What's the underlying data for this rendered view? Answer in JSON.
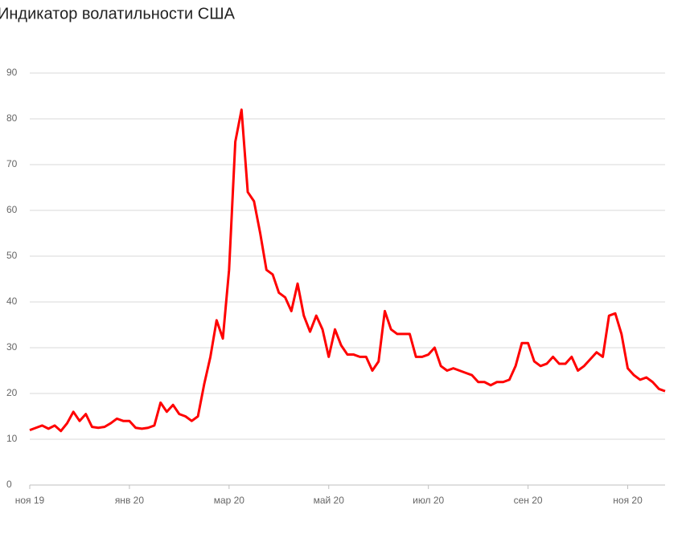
{
  "chart_data": {
    "type": "line",
    "title": "Индикатор волатильности США",
    "categories": [
      "ноя 19",
      null,
      null,
      null,
      null,
      null,
      null,
      null,
      null,
      null,
      null,
      null,
      null,
      null,
      null,
      null,
      "янв 20",
      null,
      null,
      null,
      null,
      null,
      null,
      null,
      null,
      null,
      null,
      null,
      null,
      null,
      null,
      null,
      "мар 20",
      null,
      null,
      null,
      null,
      null,
      null,
      null,
      null,
      null,
      null,
      null,
      null,
      null,
      null,
      null,
      "май 20",
      null,
      null,
      null,
      null,
      null,
      null,
      null,
      null,
      null,
      null,
      null,
      null,
      null,
      null,
      null,
      "июл 20",
      null,
      null,
      null,
      null,
      null,
      null,
      null,
      null,
      null,
      null,
      null,
      null,
      null,
      null,
      null,
      "сен 20",
      null,
      null,
      null,
      null,
      null,
      null,
      null,
      null,
      null,
      null,
      null,
      null,
      null,
      null,
      null,
      "ноя 20",
      null,
      null,
      null,
      null,
      null,
      null
    ],
    "series": [
      {
        "color": "#ff0000",
        "values": [
          12,
          12.5,
          13,
          12.3,
          13,
          11.8,
          13.5,
          16,
          14,
          15.5,
          12.7,
          12.5,
          12.7,
          13.5,
          14.5,
          14,
          14,
          12.5,
          12.3,
          12.5,
          13,
          18,
          16,
          17.5,
          15.5,
          15,
          14,
          15,
          22,
          28,
          36,
          32,
          47,
          75,
          82,
          64,
          62,
          55,
          47,
          46,
          42,
          41,
          38,
          44,
          37,
          33.5,
          37,
          34,
          28,
          34,
          30.5,
          28.5,
          28.5,
          28,
          28,
          25,
          27,
          38,
          34,
          33,
          33,
          33,
          28,
          28,
          28.5,
          30,
          26,
          25,
          25.5,
          25,
          24.5,
          24,
          22.5,
          22.5,
          21.8,
          22.5,
          22.5,
          23,
          26,
          31,
          31,
          27,
          26,
          26.5,
          28,
          26.5,
          26.5,
          28,
          25,
          26,
          27.5,
          29,
          28,
          37,
          37.5,
          33,
          25.5,
          24,
          23,
          23.5,
          22.5,
          21,
          20.5
        ]
      }
    ],
    "ylim": [
      0,
      90
    ],
    "yticks": [
      0,
      10,
      20,
      30,
      40,
      50,
      60,
      70,
      80,
      90
    ],
    "grid": true
  }
}
